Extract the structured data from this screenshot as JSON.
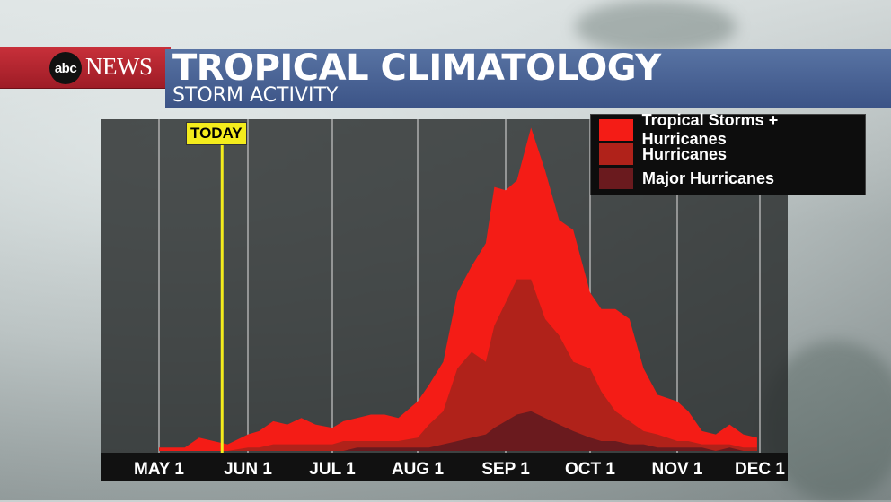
{
  "header": {
    "logo_abc": "abc",
    "logo_news": "NEWS",
    "title": "TROPICAL CLIMATOLOGY",
    "subtitle": "STORM ACTIVITY"
  },
  "today_label": "TODAY",
  "colors": {
    "total": "#f41c16",
    "hurricanes": "#b0221a",
    "major": "#6a1a1e",
    "today": "#f4ec1c"
  },
  "chart_data": {
    "type": "area",
    "title": "TROPICAL CLIMATOLOGY",
    "subtitle": "STORM ACTIVITY",
    "xlabel": "",
    "ylabel": "",
    "x_ticks": [
      "MAY 1",
      "JUN 1",
      "JUL 1",
      "AUG 1",
      "SEP 1",
      "OCT 1",
      "NOV 1",
      "DEC 1"
    ],
    "x_tick_dates": [
      "05-01",
      "06-01",
      "07-01",
      "08-01",
      "09-01",
      "10-01",
      "11-01",
      "12-01"
    ],
    "today_date": "05-23",
    "ylim": [
      0,
      100
    ],
    "grid": "vertical",
    "legend": "top-right",
    "x": [
      "05-01",
      "05-10",
      "05-15",
      "05-20",
      "05-25",
      "06-01",
      "06-05",
      "06-10",
      "06-15",
      "06-20",
      "06-25",
      "07-01",
      "07-05",
      "07-10",
      "07-15",
      "07-20",
      "07-25",
      "08-01",
      "08-05",
      "08-10",
      "08-15",
      "08-20",
      "08-25",
      "08-28",
      "09-01",
      "09-05",
      "09-10",
      "09-15",
      "09-20",
      "09-25",
      "10-01",
      "10-05",
      "10-10",
      "10-15",
      "10-20",
      "10-25",
      "11-01",
      "11-05",
      "11-10",
      "11-15",
      "11-20",
      "11-25",
      "11-30"
    ],
    "series": [
      {
        "name": "Tropical Storms + Hurricanes",
        "color": "#f41c16",
        "values": [
          1,
          1,
          4,
          3,
          2,
          5,
          6,
          9,
          8,
          10,
          8,
          7,
          9,
          10,
          11,
          11,
          10,
          15,
          20,
          27,
          48,
          56,
          63,
          80,
          79,
          82,
          98,
          85,
          70,
          67,
          48,
          43,
          43,
          40,
          25,
          17,
          15,
          12,
          6,
          5,
          8,
          5,
          4
        ]
      },
      {
        "name": "Hurricanes",
        "color": "#b0221a",
        "values": [
          0,
          0,
          0,
          0,
          0,
          1,
          1,
          2,
          2,
          2,
          2,
          2,
          3,
          3,
          3,
          3,
          3,
          4,
          8,
          12,
          25,
          30,
          27,
          38,
          45,
          52,
          52,
          40,
          35,
          27,
          25,
          18,
          12,
          9,
          6,
          5,
          3,
          3,
          2,
          2,
          2,
          1,
          1
        ]
      },
      {
        "name": "Major Hurricanes",
        "color": "#6a1a1e",
        "values": [
          0,
          0,
          0,
          0,
          0,
          0,
          0,
          0,
          0,
          0,
          0,
          0,
          0,
          1,
          1,
          1,
          1,
          1,
          1,
          2,
          3,
          4,
          5,
          7,
          9,
          11,
          12,
          10,
          8,
          6,
          4,
          3,
          3,
          2,
          2,
          1,
          1,
          1,
          1,
          0,
          1,
          0,
          0
        ]
      }
    ]
  }
}
